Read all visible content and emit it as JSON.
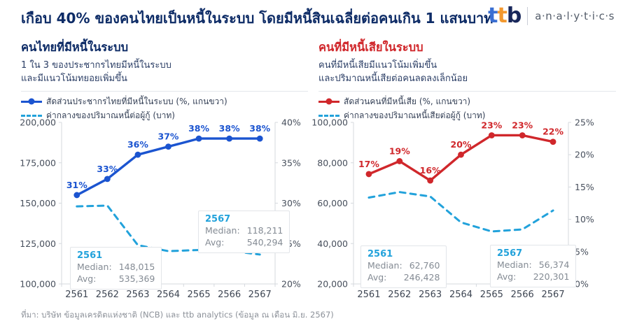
{
  "header": {
    "title": "เกือบ 40% ของคนไทยเป็นหนี้ในระบบ โดยมีหนี้สินเฉลี่ยต่อคนเกิน 1 แสนบาท",
    "logo": {
      "t1": "t",
      "t2": "t",
      "b": "b",
      "suffix": "a·n·a·l·y·t·i·c·s"
    }
  },
  "labels": {
    "median": "Median:",
    "avg": "Avg:"
  },
  "colors": {
    "navy": "#0d2b66",
    "blue": "#1b54d0",
    "red": "#d0272b",
    "cyan": "#22a2db",
    "orange": "#f3992f"
  },
  "footer": {
    "source": "ที่มา: บริษัท ข้อมูลเครดิตแห่งชาติ (NCB) และ ttb analytics (ข้อมูล ณ เดือน มิ.ย. 2567)"
  },
  "chart_data": [
    {
      "type": "line",
      "title": "คนไทยที่มีหนี้ในระบบ",
      "subtitle": "1 ใน 3 ของประชากรไทยมีหนี้ในระบบ\nและมีแนวโน้มทยอยเพิ่มขึ้น",
      "categories": [
        "2561",
        "2562",
        "2563",
        "2564",
        "2565",
        "2566",
        "2567"
      ],
      "left_axis": {
        "min": 100000,
        "max": 200000,
        "step": 25000
      },
      "right_axis": {
        "min": 20,
        "max": 40,
        "step": 5,
        "suffix": "%"
      },
      "grid": false,
      "legend_position": "top",
      "series": [
        {
          "name": "สัดส่วนประชากรไทยที่มีหนี้ในระบบ (%, แกนขวา)",
          "axis": "right",
          "style": "solid",
          "color": "#1b54d0",
          "values": [
            31,
            33,
            36,
            37,
            38,
            38,
            38
          ],
          "labels": [
            "31%",
            "33%",
            "36%",
            "37%",
            "38%",
            "38%",
            "38%"
          ]
        },
        {
          "name": "ค่ากลางของปริมาณหนี้ต่อผู้กู้ (บาท)",
          "axis": "left",
          "style": "dashed",
          "color": "#22a2db",
          "values": [
            148015,
            148500,
            124000,
            120300,
            121000,
            120600,
            118211
          ]
        }
      ],
      "annotations": [
        {
          "year": "2561",
          "median": "148,015",
          "avg": "535,369"
        },
        {
          "year": "2567",
          "median": "118,211",
          "avg": "540,294"
        }
      ]
    },
    {
      "type": "line",
      "title": "คนที่มีหนี้เสียในระบบ",
      "subtitle": "คนที่มีหนี้เสียมีแนวโน้มเพิ่มขึ้น\nและปริมาณหนี้เสียต่อคนลดลงเล็กน้อย",
      "categories": [
        "2561",
        "2562",
        "2563",
        "2564",
        "2565",
        "2566",
        "2567"
      ],
      "left_axis": {
        "min": 20000,
        "max": 100000,
        "step": 20000
      },
      "right_axis": {
        "min": 0,
        "max": 25,
        "step": 5,
        "suffix": "%"
      },
      "grid": false,
      "legend_position": "top",
      "series": [
        {
          "name": "สัดส่วนคนที่มีหนี้เสีย (%, แกนขวา)",
          "axis": "right",
          "style": "solid",
          "color": "#d0272b",
          "values": [
            17,
            19,
            16,
            20,
            23,
            23,
            22
          ],
          "labels": [
            "17%",
            "19%",
            "16%",
            "20%",
            "23%",
            "23%",
            "22%"
          ]
        },
        {
          "name": "ค่ากลางของปริมาณหนี้เสียต่อผู้กู้ (บาท)",
          "axis": "left",
          "style": "dashed",
          "color": "#22a2db",
          "values": [
            62760,
            65500,
            63300,
            50500,
            46000,
            47000,
            56374
          ]
        }
      ],
      "annotations": [
        {
          "year": "2561",
          "median": "62,760",
          "avg": "246,428"
        },
        {
          "year": "2567",
          "median": "56,374",
          "avg": "220,301"
        }
      ]
    }
  ]
}
